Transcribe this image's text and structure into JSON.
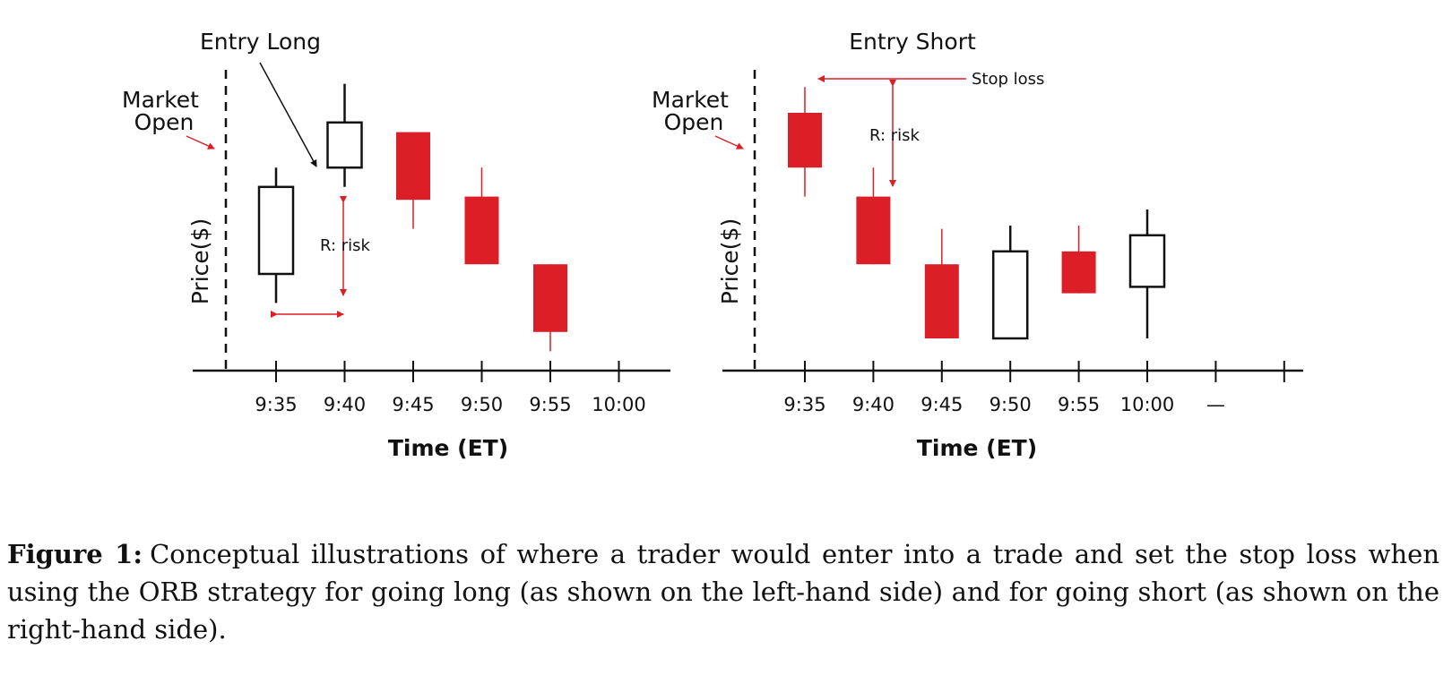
{
  "colors": {
    "bear": "#dc1f26",
    "bull": "#ffffff",
    "outline": "#111111",
    "annotation": "#dc1f26"
  },
  "chart_data": [
    {
      "type": "candlestick",
      "title": "Entry Long",
      "xlabel": "Time (ET)",
      "ylabel": "Price($)",
      "categories": [
        "9:35",
        "9:40",
        "9:45",
        "9:50",
        "9:55",
        "10:00"
      ],
      "market_open_label": "Market Open",
      "annotations": {
        "risk": "R: risk"
      },
      "candles": [
        {
          "t": "9:35",
          "open": 3.0,
          "high": 6.3,
          "low": 2.1,
          "close": 5.7,
          "color": "bull"
        },
        {
          "t": "9:40",
          "open": 6.3,
          "high": 8.9,
          "low": 5.7,
          "close": 7.7,
          "color": "bull"
        },
        {
          "t": "9:45",
          "open": 7.4,
          "high": 7.4,
          "low": 4.4,
          "close": 5.3,
          "color": "bear"
        },
        {
          "t": "9:50",
          "open": 5.4,
          "high": 6.3,
          "low": 3.3,
          "close": 3.3,
          "color": "bear"
        },
        {
          "t": "9:55",
          "open": 3.3,
          "high": 3.3,
          "low": 0.6,
          "close": 1.2,
          "color": "bear"
        }
      ]
    },
    {
      "type": "candlestick",
      "title": "Entry Short",
      "xlabel": "Time (ET)",
      "ylabel": "Price($)",
      "categories": [
        "9:35",
        "9:40",
        "9:45",
        "9:50",
        "9:55",
        "10:00",
        "—"
      ],
      "market_open_label": "Market Open",
      "annotations": {
        "risk": "R: risk",
        "stop_loss": "Stop loss"
      },
      "candles": [
        {
          "t": "9:35",
          "open": 8.0,
          "high": 8.8,
          "low": 5.4,
          "close": 6.3,
          "color": "bear"
        },
        {
          "t": "9:40",
          "open": 5.4,
          "high": 6.3,
          "low": 3.3,
          "close": 3.3,
          "color": "bear"
        },
        {
          "t": "9:45",
          "open": 3.3,
          "high": 4.4,
          "low": 1.0,
          "close": 1.0,
          "color": "bear"
        },
        {
          "t": "9:50",
          "open": 1.0,
          "high": 4.5,
          "low": 1.0,
          "close": 3.7,
          "color": "bull"
        },
        {
          "t": "9:55",
          "open": 3.7,
          "high": 4.5,
          "low": 2.4,
          "close": 2.4,
          "color": "bear"
        },
        {
          "t": "10:00",
          "open": 2.6,
          "high": 5.0,
          "low": 1.0,
          "close": 4.2,
          "color": "bull"
        }
      ]
    }
  ],
  "caption": {
    "label": "Figure 1:",
    "text": "Conceptual illustrations of where a trader would enter into a trade and set the stop loss when using the ORB strategy for going long (as shown on the left-hand side) and for going short (as shown on the right-hand side)."
  }
}
